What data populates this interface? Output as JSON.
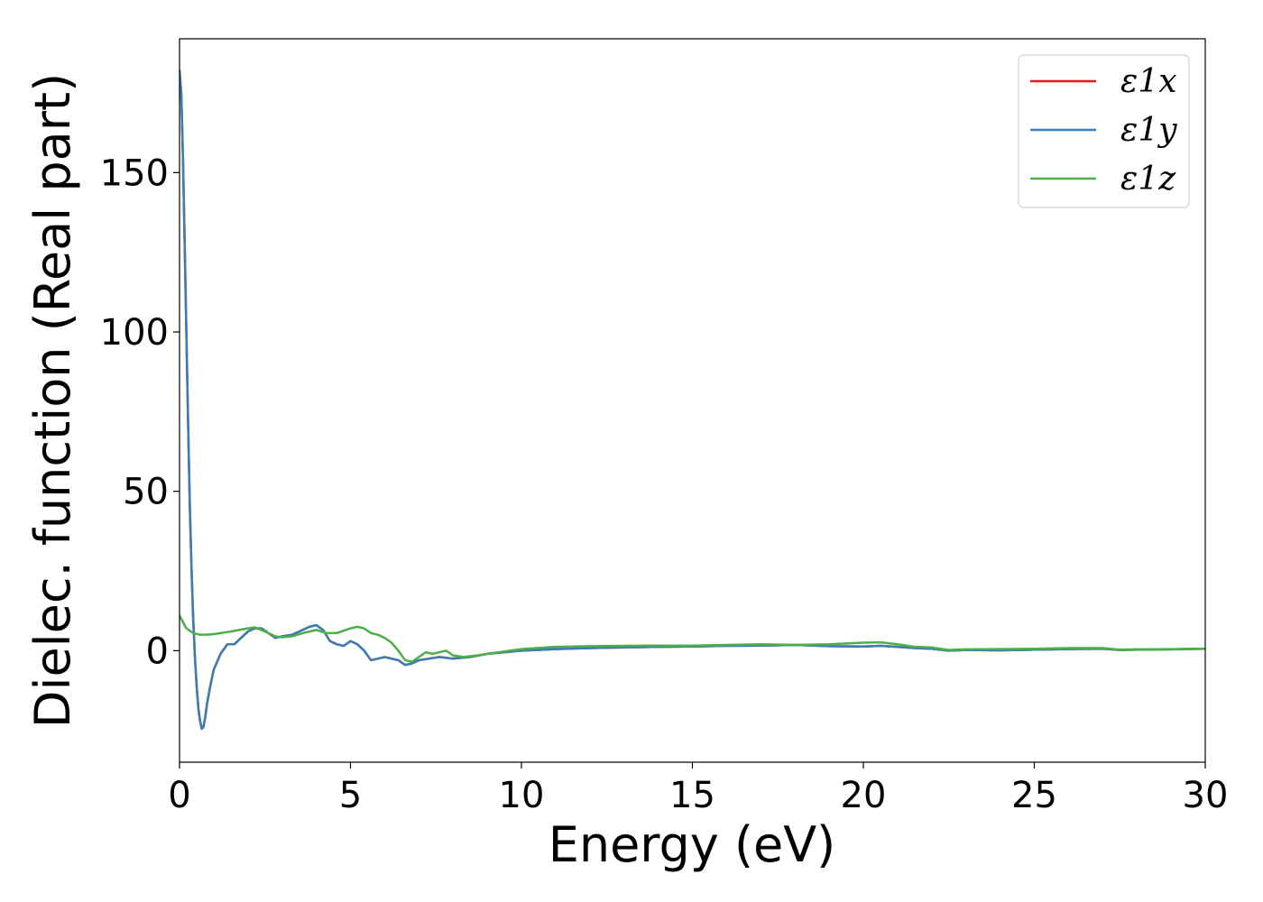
{
  "chart_data": {
    "type": "line",
    "xlabel": "Energy (eV)",
    "ylabel": "Dielec. function (Real part)",
    "xlim": [
      0,
      30
    ],
    "ylim": [
      -35,
      192
    ],
    "xticks": [
      0,
      5,
      10,
      15,
      20,
      25,
      30
    ],
    "xtick_labels": [
      "0",
      "5",
      "10",
      "15",
      "20",
      "25",
      "30"
    ],
    "yticks": [
      0,
      50,
      100,
      150
    ],
    "ytick_labels": [
      "0",
      "50",
      "100",
      "150"
    ],
    "grid": false,
    "legend_position": "top-right",
    "series": [
      {
        "name": "ε1x",
        "color": "#e41a1c",
        "points": [
          [
            0,
            182
          ],
          [
            0.05,
            175
          ],
          [
            0.1,
            155
          ],
          [
            0.15,
            128
          ],
          [
            0.2,
            100
          ],
          [
            0.25,
            72
          ],
          [
            0.3,
            46
          ],
          [
            0.35,
            26
          ],
          [
            0.4,
            10
          ],
          [
            0.45,
            -2
          ],
          [
            0.5,
            -11
          ],
          [
            0.55,
            -18
          ],
          [
            0.6,
            -22
          ],
          [
            0.65,
            -24.5
          ],
          [
            0.7,
            -24
          ],
          [
            0.75,
            -21
          ],
          [
            0.8,
            -17
          ],
          [
            0.9,
            -11
          ],
          [
            1.0,
            -6
          ],
          [
            1.2,
            -1
          ],
          [
            1.4,
            2
          ],
          [
            1.6,
            2
          ],
          [
            1.8,
            4
          ],
          [
            2.0,
            6
          ],
          [
            2.2,
            7
          ],
          [
            2.4,
            7
          ],
          [
            2.6,
            5.5
          ],
          [
            2.8,
            4
          ],
          [
            3.0,
            4.5
          ],
          [
            3.3,
            5
          ],
          [
            3.6,
            6.5
          ],
          [
            3.8,
            7.5
          ],
          [
            4.0,
            8
          ],
          [
            4.2,
            6.5
          ],
          [
            4.4,
            3
          ],
          [
            4.6,
            2
          ],
          [
            4.8,
            1.5
          ],
          [
            5.0,
            3
          ],
          [
            5.2,
            2
          ],
          [
            5.4,
            0
          ],
          [
            5.6,
            -3
          ],
          [
            5.8,
            -2.5
          ],
          [
            6.0,
            -2
          ],
          [
            6.2,
            -2.5
          ],
          [
            6.4,
            -3
          ],
          [
            6.6,
            -4.5
          ],
          [
            6.8,
            -4
          ],
          [
            7.0,
            -3
          ],
          [
            7.3,
            -2.5
          ],
          [
            7.6,
            -2
          ],
          [
            8.0,
            -2.5
          ],
          [
            8.5,
            -2
          ],
          [
            9.0,
            -1
          ],
          [
            10,
            0
          ],
          [
            11,
            0.5
          ],
          [
            12,
            0.8
          ],
          [
            13,
            1
          ],
          [
            14,
            1.2
          ],
          [
            15,
            1.3
          ],
          [
            16,
            1.5
          ],
          [
            17,
            1.6
          ],
          [
            18,
            1.8
          ],
          [
            19,
            1.4
          ],
          [
            20,
            1.3
          ],
          [
            20.5,
            1.5
          ],
          [
            21,
            1.2
          ],
          [
            21.5,
            0.8
          ],
          [
            22,
            0.6
          ],
          [
            22.5,
            0
          ],
          [
            23,
            0.2
          ],
          [
            24,
            0.1
          ],
          [
            25,
            0.3
          ],
          [
            26,
            0.5
          ],
          [
            27,
            0.6
          ],
          [
            27.5,
            0.2
          ],
          [
            28,
            0.3
          ],
          [
            29,
            0.4
          ],
          [
            30,
            0.6
          ]
        ]
      },
      {
        "name": "ε1y",
        "color": "#377eb8",
        "points": [
          [
            0,
            182
          ],
          [
            0.05,
            175
          ],
          [
            0.1,
            155
          ],
          [
            0.15,
            128
          ],
          [
            0.2,
            100
          ],
          [
            0.25,
            72
          ],
          [
            0.3,
            46
          ],
          [
            0.35,
            26
          ],
          [
            0.4,
            10
          ],
          [
            0.45,
            -2
          ],
          [
            0.5,
            -11
          ],
          [
            0.55,
            -18
          ],
          [
            0.6,
            -22
          ],
          [
            0.65,
            -24.5
          ],
          [
            0.7,
            -24
          ],
          [
            0.75,
            -21
          ],
          [
            0.8,
            -17
          ],
          [
            0.9,
            -11
          ],
          [
            1.0,
            -6
          ],
          [
            1.2,
            -1
          ],
          [
            1.4,
            2
          ],
          [
            1.6,
            2
          ],
          [
            1.8,
            4
          ],
          [
            2.0,
            6
          ],
          [
            2.2,
            7
          ],
          [
            2.4,
            7
          ],
          [
            2.6,
            5.5
          ],
          [
            2.8,
            4
          ],
          [
            3.0,
            4.5
          ],
          [
            3.3,
            5
          ],
          [
            3.6,
            6.5
          ],
          [
            3.8,
            7.5
          ],
          [
            4.0,
            8
          ],
          [
            4.2,
            6.5
          ],
          [
            4.4,
            3
          ],
          [
            4.6,
            2
          ],
          [
            4.8,
            1.5
          ],
          [
            5.0,
            3
          ],
          [
            5.2,
            2
          ],
          [
            5.4,
            0
          ],
          [
            5.6,
            -3
          ],
          [
            5.8,
            -2.5
          ],
          [
            6.0,
            -2
          ],
          [
            6.2,
            -2.5
          ],
          [
            6.4,
            -3
          ],
          [
            6.6,
            -4.5
          ],
          [
            6.8,
            -4
          ],
          [
            7.0,
            -3
          ],
          [
            7.3,
            -2.5
          ],
          [
            7.6,
            -2
          ],
          [
            8.0,
            -2.5
          ],
          [
            8.5,
            -2
          ],
          [
            9.0,
            -1
          ],
          [
            10,
            0
          ],
          [
            11,
            0.5
          ],
          [
            12,
            0.8
          ],
          [
            13,
            1
          ],
          [
            14,
            1.2
          ],
          [
            15,
            1.3
          ],
          [
            16,
            1.5
          ],
          [
            17,
            1.6
          ],
          [
            18,
            1.8
          ],
          [
            19,
            1.4
          ],
          [
            20,
            1.3
          ],
          [
            20.5,
            1.5
          ],
          [
            21,
            1.2
          ],
          [
            21.5,
            0.8
          ],
          [
            22,
            0.6
          ],
          [
            22.5,
            0
          ],
          [
            23,
            0.2
          ],
          [
            24,
            0.1
          ],
          [
            25,
            0.3
          ],
          [
            26,
            0.5
          ],
          [
            27,
            0.6
          ],
          [
            27.5,
            0.2
          ],
          [
            28,
            0.3
          ],
          [
            29,
            0.4
          ],
          [
            30,
            0.6
          ]
        ]
      },
      {
        "name": "ε1z",
        "color": "#4daf4a",
        "points": [
          [
            0,
            11
          ],
          [
            0.2,
            7
          ],
          [
            0.4,
            5.5
          ],
          [
            0.6,
            5
          ],
          [
            0.8,
            5
          ],
          [
            1.0,
            5.2
          ],
          [
            1.5,
            6
          ],
          [
            2.0,
            7
          ],
          [
            2.2,
            7.3
          ],
          [
            2.5,
            6
          ],
          [
            2.8,
            4.5
          ],
          [
            3.0,
            4.2
          ],
          [
            3.3,
            4.5
          ],
          [
            3.6,
            5.5
          ],
          [
            4.0,
            6.5
          ],
          [
            4.3,
            5.5
          ],
          [
            4.6,
            5.5
          ],
          [
            5.0,
            7
          ],
          [
            5.2,
            7.5
          ],
          [
            5.4,
            7
          ],
          [
            5.6,
            5.5
          ],
          [
            5.8,
            5
          ],
          [
            6.0,
            4
          ],
          [
            6.2,
            2.5
          ],
          [
            6.4,
            0
          ],
          [
            6.6,
            -3
          ],
          [
            6.8,
            -3.5
          ],
          [
            7.0,
            -2
          ],
          [
            7.2,
            -0.5
          ],
          [
            7.4,
            -1
          ],
          [
            7.6,
            -0.5
          ],
          [
            7.8,
            0
          ],
          [
            8.0,
            -1.5
          ],
          [
            8.3,
            -2
          ],
          [
            8.7,
            -1.5
          ],
          [
            9.0,
            -1
          ],
          [
            10,
            0.5
          ],
          [
            11,
            1.2
          ],
          [
            12,
            1.4
          ],
          [
            13,
            1.5
          ],
          [
            14,
            1.6
          ],
          [
            15,
            1.6
          ],
          [
            16,
            1.8
          ],
          [
            17,
            2
          ],
          [
            18,
            1.8
          ],
          [
            19,
            2
          ],
          [
            20,
            2.5
          ],
          [
            20.5,
            2.6
          ],
          [
            21,
            2
          ],
          [
            21.5,
            1.2
          ],
          [
            22,
            1
          ],
          [
            22.5,
            0.2
          ],
          [
            23,
            0.4
          ],
          [
            24,
            0.5
          ],
          [
            25,
            0.6
          ],
          [
            26,
            0.8
          ],
          [
            27,
            0.8
          ],
          [
            27.5,
            0.3
          ],
          [
            28,
            0.4
          ],
          [
            29,
            0.5
          ],
          [
            30,
            0.6
          ]
        ]
      }
    ]
  }
}
